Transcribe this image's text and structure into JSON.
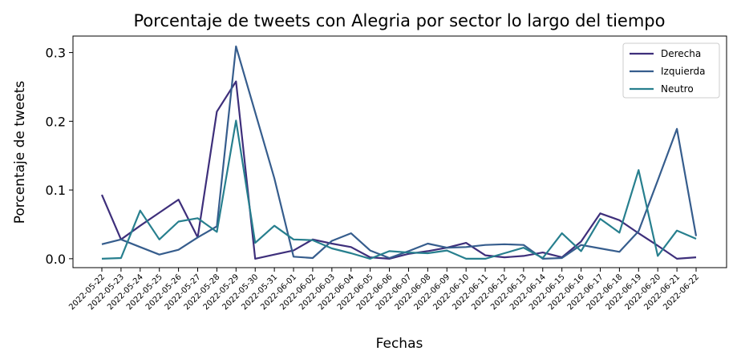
{
  "chart_data": {
    "type": "line",
    "title": "Porcentaje de tweets con Alegria por sector lo largo del tiempo",
    "xlabel": "Fechas",
    "ylabel": "Porcentaje de tweets",
    "ylim": [
      -0.013,
      0.324
    ],
    "yticks": [
      0.0,
      0.1,
      0.2,
      0.3
    ],
    "ytick_labels": [
      "0.0",
      "0.1",
      "0.2",
      "0.3"
    ],
    "legend_position": "top-right",
    "grid": false,
    "categories": [
      "2022-05-22",
      "2022-05-23",
      "2022-05-24",
      "2022-05-25",
      "2022-05-26",
      "2022-05-27",
      "2022-05-28",
      "2022-05-29",
      "2022-05-30",
      "2022-05-31",
      "2022-06-01",
      "2022-06-02",
      "2022-06-03",
      "2022-06-04",
      "2022-06-05",
      "2022-06-06",
      "2022-06-07",
      "2022-06-08",
      "2022-06-09",
      "2022-06-10",
      "2022-06-11",
      "2022-06-12",
      "2022-06-13",
      "2022-06-14",
      "2022-06-15",
      "2022-06-16",
      "2022-06-17",
      "2022-06-18",
      "2022-06-19",
      "2022-06-20",
      "2022-06-21",
      "2022-06-22"
    ],
    "series": [
      {
        "name": "Derecha",
        "color": "#3e2f7b",
        "values": [
          0.093,
          0.028,
          0.048,
          0.067,
          0.086,
          0.031,
          0.214,
          0.258,
          0.0,
          0.006,
          0.012,
          0.028,
          0.022,
          0.017,
          0.002,
          0.0,
          0.007,
          0.011,
          0.016,
          0.023,
          0.005,
          0.002,
          0.004,
          0.009,
          0.002,
          0.025,
          0.066,
          0.056,
          0.037,
          0.019,
          0.0,
          0.002
        ]
      },
      {
        "name": "Izquierda",
        "color": "#365d8d",
        "values": [
          0.021,
          0.028,
          0.017,
          0.006,
          0.013,
          0.031,
          0.047,
          0.309,
          0.213,
          0.117,
          0.003,
          0.001,
          0.026,
          0.037,
          0.012,
          0.001,
          0.011,
          0.022,
          0.016,
          0.017,
          0.02,
          0.021,
          0.02,
          0.0,
          0.001,
          0.02,
          0.015,
          0.01,
          0.04,
          0.114,
          0.189,
          0.033
        ]
      },
      {
        "name": "Neutro",
        "color": "#277f8e",
        "values": [
          0.0,
          0.001,
          0.07,
          0.028,
          0.054,
          0.059,
          0.039,
          0.201,
          0.023,
          0.048,
          0.028,
          0.027,
          0.015,
          0.008,
          0.0,
          0.011,
          0.009,
          0.008,
          0.012,
          0.0,
          0.0,
          0.008,
          0.016,
          0.001,
          0.037,
          0.011,
          0.058,
          0.038,
          0.129,
          0.004,
          0.041,
          0.029
        ]
      }
    ]
  }
}
